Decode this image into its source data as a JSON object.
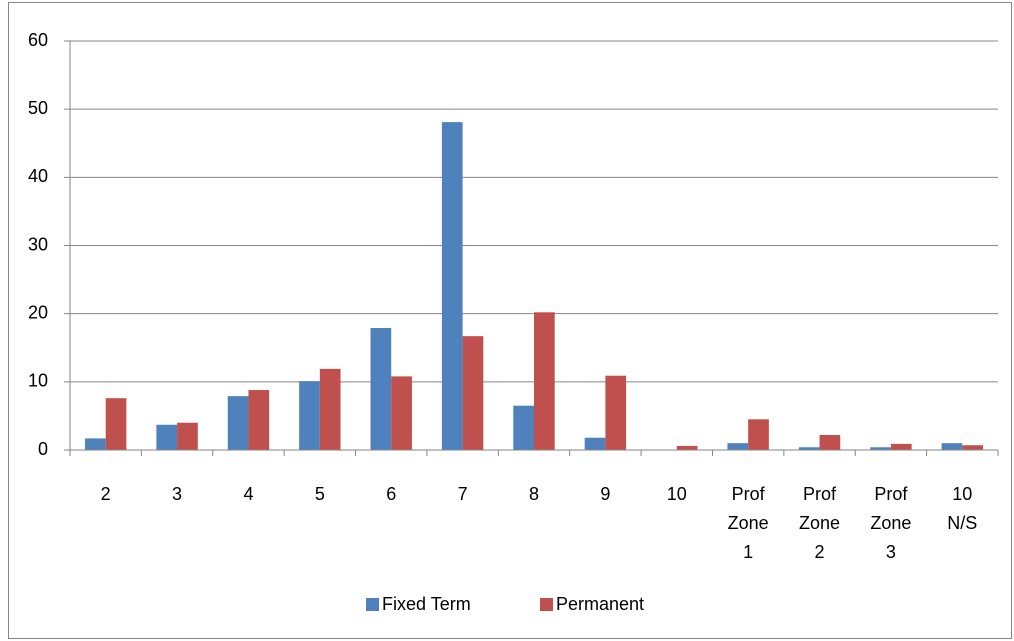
{
  "chart_data": {
    "type": "bar",
    "categories": [
      "2",
      "3",
      "4",
      "5",
      "6",
      "7",
      "8",
      "9",
      "10",
      "Prof Zone 1",
      "Prof Zone 2",
      "Prof Zone 3",
      "10 N/S"
    ],
    "series": [
      {
        "name": "Fixed Term",
        "color": "#4f81bd",
        "values": [
          1.7,
          3.7,
          7.9,
          10.1,
          17.9,
          48.1,
          6.5,
          1.8,
          0,
          1.0,
          0.4,
          0.4,
          1.0
        ]
      },
      {
        "name": "Permanent",
        "color": "#c0504d",
        "values": [
          7.6,
          4.0,
          8.8,
          11.9,
          10.8,
          16.7,
          20.2,
          10.9,
          0.6,
          4.5,
          2.2,
          0.9,
          0.7
        ]
      }
    ],
    "ylim": [
      0,
      60
    ],
    "yticks": [
      0,
      10,
      20,
      30,
      40,
      50,
      60
    ],
    "grid": true,
    "legend": "bottom"
  }
}
